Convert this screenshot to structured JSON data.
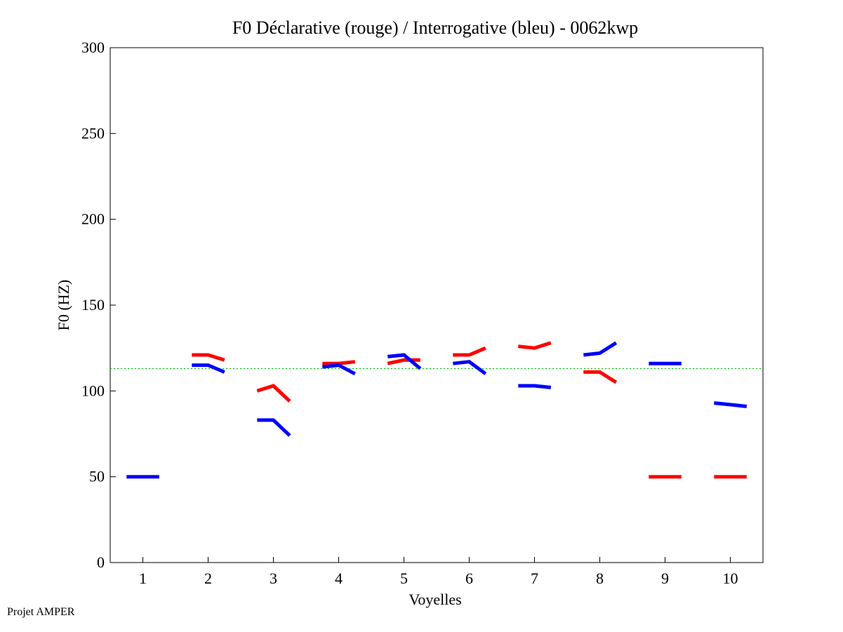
{
  "chart_data": {
    "type": "line",
    "title": "F0 Déclarative (rouge) / Interrogative (bleu) - 0062kwp",
    "xlabel": "Voyelles",
    "ylabel": "F0 (HZ)",
    "xlim": [
      0.5,
      10.5
    ],
    "ylim": [
      0,
      300
    ],
    "x_ticks": [
      1,
      2,
      3,
      4,
      5,
      6,
      7,
      8,
      9,
      10
    ],
    "y_ticks": [
      0,
      50,
      100,
      150,
      200,
      250,
      300
    ],
    "grid": false,
    "reference_line": {
      "name": "mean",
      "value": 113,
      "color": "#00c000"
    },
    "series": [
      {
        "name": "Déclarative",
        "color": "#ff0000",
        "segments": [
          {
            "vowel": 2,
            "values": [
              121,
              121,
              118
            ]
          },
          {
            "vowel": 3,
            "values": [
              100,
              103,
              94
            ]
          },
          {
            "vowel": 4,
            "values": [
              116,
              116,
              117
            ]
          },
          {
            "vowel": 5,
            "values": [
              116,
              118,
              118
            ]
          },
          {
            "vowel": 6,
            "values": [
              121,
              121,
              125
            ]
          },
          {
            "vowel": 7,
            "values": [
              126,
              125,
              128
            ]
          },
          {
            "vowel": 8,
            "values": [
              111,
              111,
              105
            ]
          },
          {
            "vowel": 9,
            "values": [
              50,
              50,
              50
            ]
          },
          {
            "vowel": 10,
            "values": [
              50,
              50,
              50
            ]
          }
        ]
      },
      {
        "name": "Interrogative",
        "color": "#0000ff",
        "segments": [
          {
            "vowel": 1,
            "values": [
              50,
              50,
              50
            ]
          },
          {
            "vowel": 2,
            "values": [
              115,
              115,
              111
            ]
          },
          {
            "vowel": 3,
            "values": [
              83,
              83,
              74
            ]
          },
          {
            "vowel": 4,
            "values": [
              114,
              115,
              110
            ]
          },
          {
            "vowel": 5,
            "values": [
              120,
              121,
              113
            ]
          },
          {
            "vowel": 6,
            "values": [
              116,
              117,
              110
            ]
          },
          {
            "vowel": 7,
            "values": [
              103,
              103,
              102
            ]
          },
          {
            "vowel": 8,
            "values": [
              121,
              122,
              128
            ]
          },
          {
            "vowel": 9,
            "values": [
              116,
              116,
              116
            ]
          },
          {
            "vowel": 10,
            "values": [
              93,
              92,
              91
            ]
          }
        ]
      }
    ]
  },
  "footer": {
    "text": "Projet AMPER"
  }
}
